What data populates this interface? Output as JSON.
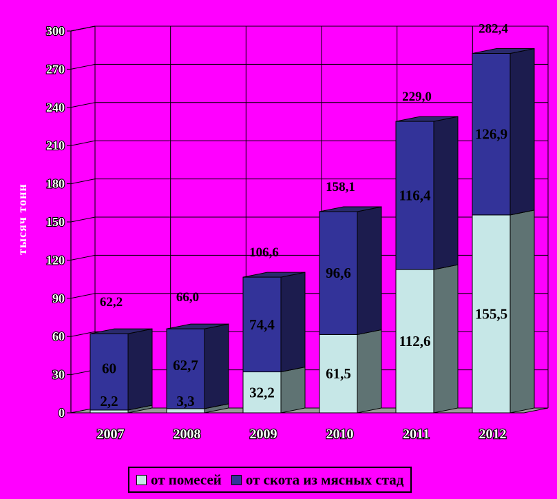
{
  "chart_data": {
    "type": "bar",
    "stacked": true,
    "three_d": true,
    "categories": [
      "2007",
      "2008",
      "2009",
      "2010",
      "2011",
      "2012"
    ],
    "series": [
      {
        "name": "от помесей",
        "values": [
          2.2,
          3.3,
          32.2,
          61.5,
          112.6,
          155.5
        ],
        "labels": [
          "2,2",
          "3,3",
          "32,2",
          "61,5",
          "112,6",
          "155,5"
        ],
        "color": "#c6e7e7"
      },
      {
        "name": "от скота из мясных стад",
        "values": [
          60,
          62.7,
          74.4,
          96.6,
          116.4,
          126.9
        ],
        "labels": [
          "60",
          "62,7",
          "74,4",
          "96,6",
          "116,4",
          "126,9"
        ],
        "color": "#333399"
      }
    ],
    "totals": [
      62.2,
      66.0,
      106.6,
      158.1,
      229.0,
      282.4
    ],
    "total_labels": [
      "62,2",
      "66,0",
      "106,6",
      "158,1",
      "229,0",
      "282,4"
    ],
    "ylabel": "тысяч тонн",
    "ylim": [
      0,
      300
    ],
    "yticks": [
      0,
      30,
      60,
      90,
      120,
      150,
      180,
      210,
      240,
      270,
      300
    ],
    "grid": true,
    "legend_position": "bottom",
    "colors": {
      "background": "#ff00ff",
      "beef_side": "#1c1c4e",
      "beef_top": "#2a2a6c",
      "cross_side": "#5f7373",
      "cross_top": "#9fb3b3",
      "floor": "#9a9a9a"
    }
  }
}
